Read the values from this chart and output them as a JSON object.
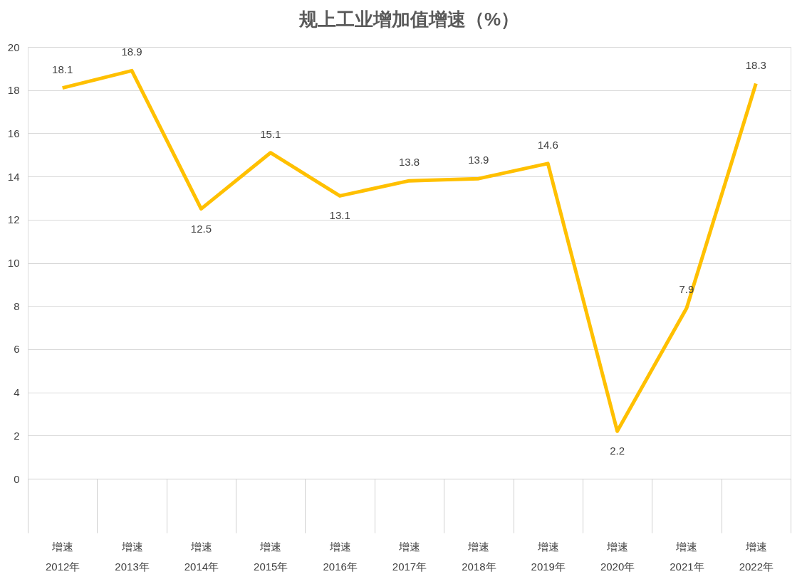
{
  "chart_data": {
    "type": "line",
    "title": "规上工业增加值增速（%）",
    "categories": [
      "增速\n2012年",
      "增速\n2013年",
      "增速\n2014年",
      "增速\n2015年",
      "增速\n2016年",
      "增速\n2017年",
      "增速\n2018年",
      "增速\n2019年",
      "增速\n2020年",
      "增速\n2021年",
      "增速\n2022年"
    ],
    "series": [
      {
        "color": "#ffc000",
        "values": [
          18.1,
          18.9,
          12.5,
          15.1,
          13.1,
          13.8,
          13.9,
          14.6,
          2.2,
          7.9,
          18.3
        ]
      }
    ],
    "ylim": [
      0,
      20
    ],
    "yticks": [
      0,
      2,
      4,
      6,
      8,
      10,
      12,
      14,
      16,
      18,
      20
    ],
    "grid": "y",
    "data_labels": true,
    "marker": "none",
    "line_style": "solid"
  }
}
